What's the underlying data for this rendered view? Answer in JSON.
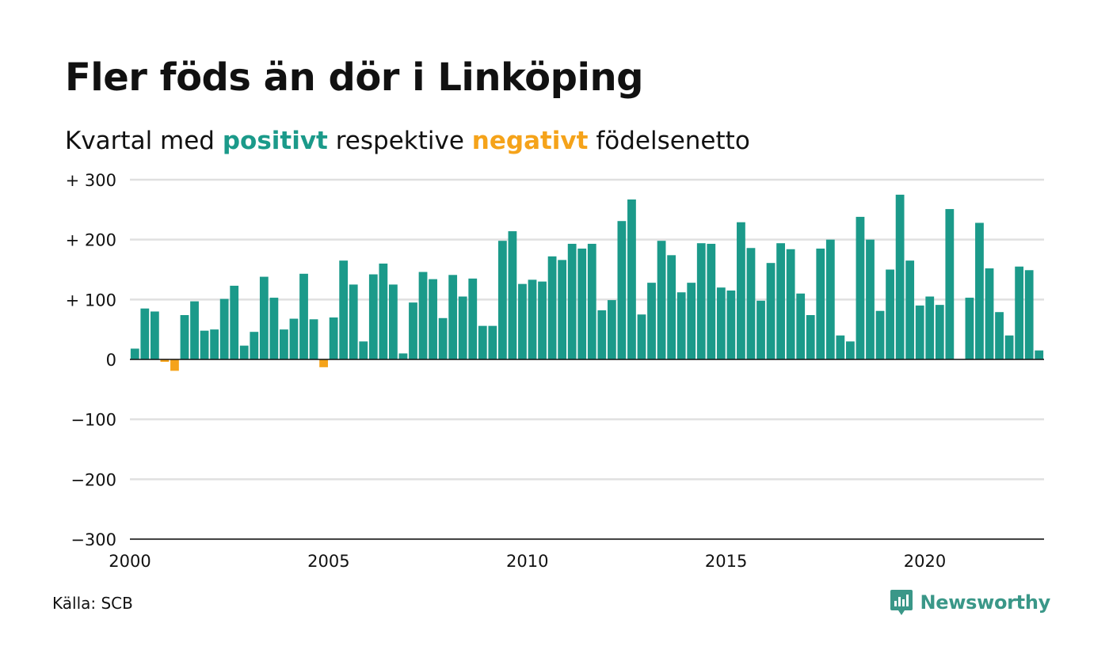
{
  "title": "Fler föds än dör i Linköping",
  "subtitle": {
    "part1": "Kvartal med ",
    "positive_word": "positivt",
    "part2": " respektive ",
    "negative_word": "negativt",
    "part3": " födelsenetto"
  },
  "colors": {
    "positive": "#1b9a8a",
    "negative": "#f5a31a",
    "grid": "#e0e0e0",
    "zero_line": "#111111",
    "logo": "#3a9788"
  },
  "source": "Källa: SCB",
  "brand": {
    "name": "Newsworthy",
    "icon": "bar-chart-speech-bubble-icon"
  },
  "chart_data": {
    "type": "bar",
    "x_start": 2000,
    "x_step": 0.25,
    "xlim": [
      2000,
      2023
    ],
    "ylim": [
      -300,
      300
    ],
    "grid": true,
    "y_ticks": [
      {
        "value": 300,
        "label": "+ 300"
      },
      {
        "value": 200,
        "label": "+ 200"
      },
      {
        "value": 100,
        "label": "+ 100"
      },
      {
        "value": 0,
        "label": "0"
      },
      {
        "value": -100,
        "label": "−100"
      },
      {
        "value": -200,
        "label": "−200"
      },
      {
        "value": -300,
        "label": "−300"
      }
    ],
    "x_ticks": [
      {
        "value": 2000,
        "label": "2000"
      },
      {
        "value": 2005,
        "label": "2005"
      },
      {
        "value": 2010,
        "label": "2010"
      },
      {
        "value": 2015,
        "label": "2015"
      },
      {
        "value": 2020,
        "label": "2020"
      }
    ],
    "values": [
      18,
      85,
      80,
      -4,
      -19,
      74,
      97,
      48,
      50,
      101,
      123,
      23,
      46,
      138,
      103,
      50,
      68,
      143,
      67,
      -13,
      70,
      165,
      125,
      30,
      142,
      160,
      125,
      10,
      95,
      146,
      134,
      69,
      141,
      105,
      135,
      56,
      56,
      198,
      214,
      126,
      133,
      130,
      172,
      166,
      193,
      185,
      193,
      82,
      99,
      231,
      267,
      75,
      128,
      198,
      174,
      112,
      128,
      194,
      193,
      120,
      115,
      229,
      186,
      98,
      161,
      194,
      184,
      110,
      74,
      185,
      200,
      40,
      30,
      238,
      200,
      81,
      150,
      275,
      165,
      90,
      105,
      91,
      251,
      0,
      103,
      228,
      152,
      79,
      40,
      155,
      149,
      15
    ]
  }
}
